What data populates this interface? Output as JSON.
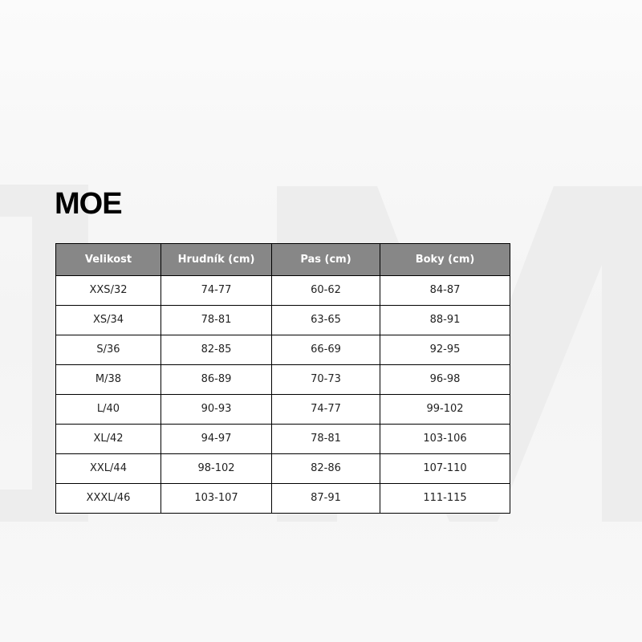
{
  "title": "MOE",
  "table": {
    "headers": [
      "Velikost",
      "Hrudník (cm)",
      "Pas (cm)",
      "Boky (cm)"
    ],
    "rows": [
      [
        "XXS/32",
        "74-77",
        "60-62",
        "84-87"
      ],
      [
        "XS/34",
        "78-81",
        "63-65",
        "88-91"
      ],
      [
        "S/36",
        "82-85",
        "66-69",
        "92-95"
      ],
      [
        "M/38",
        "86-89",
        "70-73",
        "96-98"
      ],
      [
        "L/40",
        "90-93",
        "74-77",
        "99-102"
      ],
      [
        "XL/42",
        "94-97",
        "78-81",
        "103-106"
      ],
      [
        "XXL/44",
        "98-102",
        "82-86",
        "107-110"
      ],
      [
        "XXXL/46",
        "103-107",
        "87-91",
        "111-115"
      ]
    ]
  },
  "colors": {
    "header_bg": "#878787",
    "header_text": "#ffffff"
  }
}
